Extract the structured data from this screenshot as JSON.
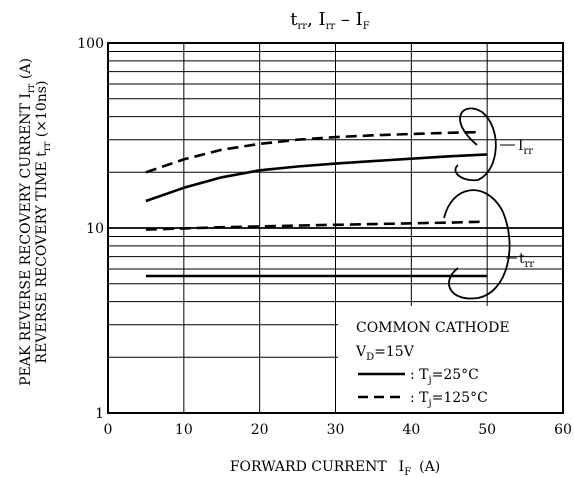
{
  "chart_data": {
    "type": "line",
    "title": {
      "main": "t",
      "sub1": "rr",
      "mid": ", I",
      "sub2": "rr",
      "dash": " – ",
      "main2": "I",
      "sub3": "F"
    },
    "xlabel": {
      "text": "FORWARD CURRENT",
      "sym": "I",
      "sub": "F",
      "unit": "(A)"
    },
    "ylabel": {
      "line1": "PEAK REVERSE RECOVERY CURRENT  I",
      "line1_sub": "rr",
      "line1_unit": " (A)",
      "line2": "REVERSE RECOVERY TIME  t",
      "line2_sub": "rr",
      "line2_unit": " (×10ns)"
    },
    "xlim": [
      0,
      60
    ],
    "ylim": [
      1,
      100
    ],
    "yscale": "log",
    "grid": true,
    "x_ticks": [
      "0",
      "10",
      "20",
      "30",
      "40",
      "50",
      "60"
    ],
    "y_ticks": [
      "1",
      "10",
      "100"
    ],
    "series": [
      {
        "group": "Irr",
        "style": "solid",
        "x": [
          5,
          10,
          15,
          20,
          25,
          30,
          35,
          40,
          45,
          50
        ],
        "y": [
          14,
          16.5,
          18.8,
          20.5,
          21.5,
          22.3,
          23,
          23.7,
          24.4,
          25
        ]
      },
      {
        "group": "Irr",
        "style": "dashed",
        "x": [
          5,
          10,
          15,
          20,
          25,
          30,
          35,
          40,
          45,
          49
        ],
        "y": [
          20,
          23.5,
          26.5,
          28.5,
          30,
          31,
          31.7,
          32.2,
          32.7,
          33
        ]
      },
      {
        "group": "trr",
        "style": "dashed",
        "x": [
          5,
          10,
          15,
          20,
          25,
          30,
          35,
          40,
          45,
          49
        ],
        "y": [
          9.8,
          9.95,
          10.1,
          10.2,
          10.3,
          10.4,
          10.5,
          10.6,
          10.7,
          10.8
        ]
      },
      {
        "group": "trr",
        "style": "solid",
        "x": [
          5,
          10,
          20,
          30,
          40,
          50
        ],
        "y": [
          5.5,
          5.5,
          5.5,
          5.5,
          5.5,
          5.5
        ]
      }
    ],
    "curve_labels": {
      "irr": {
        "main": "I",
        "sub": "rr"
      },
      "trr": {
        "main": "t",
        "sub": "rr"
      }
    },
    "legend": {
      "placement": "bottom-right",
      "title": "COMMON CATHODE",
      "condition": {
        "main": "V",
        "sub": "D",
        "rest": "=15V"
      },
      "entries": [
        {
          "style": "solid",
          "prefix": ": T",
          "sub": "j",
          "rest": "=25°C"
        },
        {
          "style": "dashed",
          "prefix": ": T",
          "sub": "j",
          "rest": "=125°C"
        }
      ]
    }
  }
}
